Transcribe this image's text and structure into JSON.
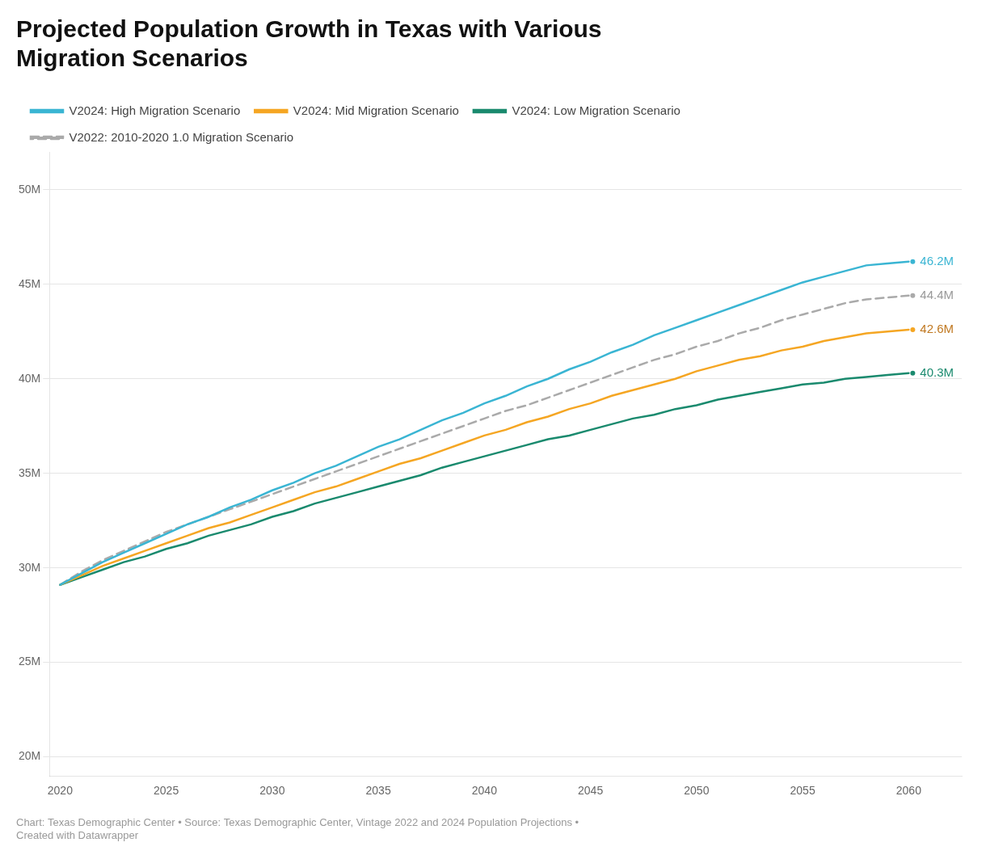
{
  "chart_data": {
    "type": "line",
    "title": [
      "Projected Population Growth in Texas with Various",
      "Migration Scenarios"
    ],
    "footnote": "Chart: Texas Demographic Center • Source: Texas Demographic Center, Vintage 2022 and 2024 Population Projections •\nCreated with Datawrapper",
    "x": [
      2020,
      2021,
      2022,
      2023,
      2024,
      2025,
      2026,
      2027,
      2028,
      2029,
      2030,
      2031,
      2032,
      2033,
      2034,
      2035,
      2036,
      2037,
      2038,
      2039,
      2040,
      2041,
      2042,
      2043,
      2044,
      2045,
      2046,
      2047,
      2048,
      2049,
      2050,
      2051,
      2052,
      2053,
      2054,
      2055,
      2056,
      2057,
      2058,
      2059,
      2060
    ],
    "series": [
      {
        "name": "V2024: High Migration Scenario",
        "color": "#3ab5d3",
        "line_style": "solid",
        "values": [
          29.1,
          29.7,
          30.3,
          30.8,
          31.3,
          31.8,
          32.3,
          32.7,
          33.2,
          33.6,
          34.1,
          34.5,
          35.0,
          35.4,
          35.9,
          36.4,
          36.8,
          37.3,
          37.8,
          38.2,
          38.7,
          39.1,
          39.6,
          40.0,
          40.5,
          40.9,
          41.4,
          41.8,
          42.3,
          42.7,
          43.1,
          43.5,
          43.9,
          44.3,
          44.7,
          45.1,
          45.4,
          45.7,
          46.0,
          46.1,
          46.2
        ]
      },
      {
        "name": "V2024: Mid Migration Scenario",
        "color": "#f5a623",
        "line_style": "solid",
        "values": [
          29.1,
          29.6,
          30.1,
          30.5,
          30.9,
          31.3,
          31.7,
          32.1,
          32.4,
          32.8,
          33.2,
          33.6,
          34.0,
          34.3,
          34.7,
          35.1,
          35.5,
          35.8,
          36.2,
          36.6,
          37.0,
          37.3,
          37.7,
          38.0,
          38.4,
          38.7,
          39.1,
          39.4,
          39.7,
          40.0,
          40.4,
          40.7,
          41.0,
          41.2,
          41.5,
          41.7,
          42.0,
          42.2,
          42.4,
          42.5,
          42.6
        ]
      },
      {
        "name": "V2024: Low Migration Scenario",
        "color": "#1a8a6e",
        "line_style": "solid",
        "values": [
          29.1,
          29.5,
          29.9,
          30.3,
          30.6,
          31.0,
          31.3,
          31.7,
          32.0,
          32.3,
          32.7,
          33.0,
          33.4,
          33.7,
          34.0,
          34.3,
          34.6,
          34.9,
          35.3,
          35.6,
          35.9,
          36.2,
          36.5,
          36.8,
          37.0,
          37.3,
          37.6,
          37.9,
          38.1,
          38.4,
          38.6,
          38.9,
          39.1,
          39.3,
          39.5,
          39.7,
          39.8,
          40.0,
          40.1,
          40.2,
          40.3
        ]
      },
      {
        "name": "V2022: 2010-2020 1.0 Migration Scenario",
        "color": "#aaaaaa",
        "line_style": "dashed",
        "values": [
          29.1,
          29.8,
          30.4,
          30.9,
          31.4,
          31.9,
          32.3,
          32.7,
          33.1,
          33.5,
          33.9,
          34.3,
          34.7,
          35.1,
          35.5,
          35.9,
          36.3,
          36.7,
          37.1,
          37.5,
          37.9,
          38.3,
          38.6,
          39.0,
          39.4,
          39.8,
          40.2,
          40.6,
          41.0,
          41.3,
          41.7,
          42.0,
          42.4,
          42.7,
          43.1,
          43.4,
          43.7,
          44.0,
          44.2,
          44.3,
          44.4
        ]
      }
    ],
    "annotations": [
      {
        "text": "46.2M",
        "x": 2060,
        "y": 46.2,
        "color": "#3ab5d3"
      },
      {
        "text": "44.4M",
        "x": 2060,
        "y": 44.4,
        "color": "#999999"
      },
      {
        "text": "42.6M",
        "x": 2060,
        "y": 42.6,
        "color": "#c07820"
      },
      {
        "text": "40.3M",
        "x": 2060,
        "y": 40.3,
        "color": "#1a8a6e"
      }
    ],
    "xlim": [
      2019.5,
      2062.5
    ],
    "xticks": [
      2020,
      2025,
      2030,
      2035,
      2040,
      2045,
      2050,
      2055,
      2060
    ],
    "ylim": [
      19.0,
      52.0
    ],
    "yticks": [
      {
        "value": 20,
        "label": "20M"
      },
      {
        "value": 25,
        "label": "25M"
      },
      {
        "value": 30,
        "label": "30M"
      },
      {
        "value": 35,
        "label": "35M"
      },
      {
        "value": 40,
        "label": "40M"
      },
      {
        "value": 45,
        "label": "45M"
      },
      {
        "value": 50,
        "label": "50M"
      }
    ],
    "grid": "y",
    "legend": "top"
  }
}
